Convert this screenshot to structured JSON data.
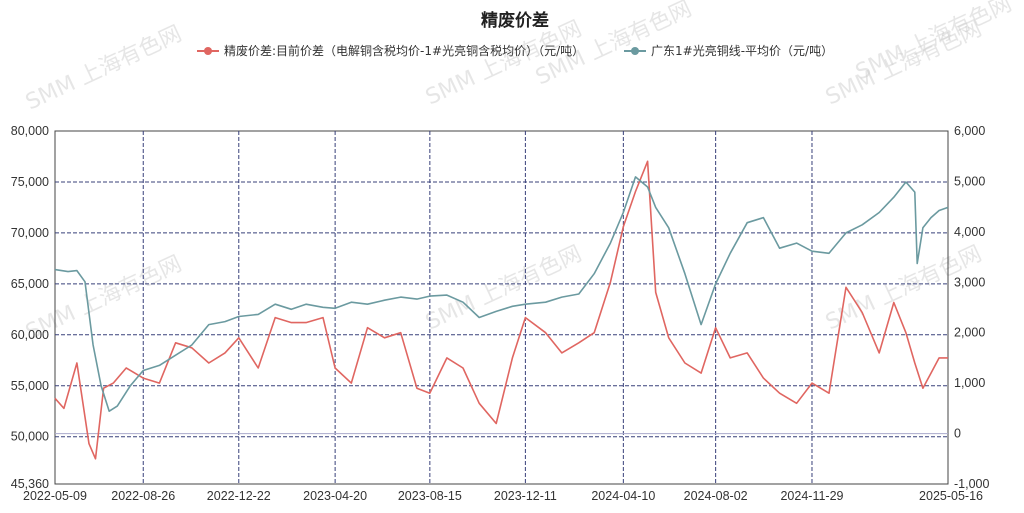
{
  "chart_data": {
    "type": "line",
    "title": "精废价差",
    "watermark": "SMM 上海有色网",
    "x_ticks": [
      "2022-05-09",
      "2022-08-26",
      "2022-12-22",
      "2023-04-20",
      "2023-08-15",
      "2023-12-11",
      "2024-04-10",
      "2024-08-02",
      "2024-11-29",
      "2025-05-16"
    ],
    "xlim": [
      "2022-05-09",
      "2025-05-16"
    ],
    "left_axis": {
      "ylim": [
        45360,
        80000
      ],
      "ticks": [
        "45,360",
        "50,000",
        "55,000",
        "60,000",
        "65,000",
        "70,000",
        "75,000",
        "80,000"
      ],
      "tick_values": [
        45360,
        50000,
        55000,
        60000,
        65000,
        70000,
        75000,
        80000
      ]
    },
    "right_axis": {
      "ylim": [
        -1000,
        6000
      ],
      "ticks": [
        "-1,000",
        "0",
        "1,000",
        "2,000",
        "3,000",
        "4,000",
        "5,000",
        "6,000"
      ],
      "tick_values": [
        -1000,
        0,
        1000,
        2000,
        3000,
        4000,
        5000,
        6000
      ]
    },
    "grid": true,
    "legend_position": "top",
    "series": [
      {
        "name": "精废价差:目前价差（电解铜含税均价-1#光亮铜含税均价）（元/吨）",
        "axis": "right",
        "color": "#e06661",
        "x": [
          "2022-05-09",
          "2022-05-20",
          "2022-06-05",
          "2022-06-20",
          "2022-06-28",
          "2022-07-08",
          "2022-07-20",
          "2022-08-05",
          "2022-08-26",
          "2022-09-15",
          "2022-10-05",
          "2022-10-25",
          "2022-11-15",
          "2022-12-05",
          "2022-12-22",
          "2023-01-15",
          "2023-02-05",
          "2023-02-25",
          "2023-03-15",
          "2023-04-05",
          "2023-04-20",
          "2023-05-10",
          "2023-05-30",
          "2023-06-20",
          "2023-07-10",
          "2023-07-30",
          "2023-08-15",
          "2023-09-05",
          "2023-09-25",
          "2023-10-15",
          "2023-11-05",
          "2023-11-25",
          "2023-12-11",
          "2024-01-05",
          "2024-01-25",
          "2024-02-15",
          "2024-03-05",
          "2024-03-25",
          "2024-04-10",
          "2024-04-25",
          "2024-05-10",
          "2024-05-20",
          "2024-06-05",
          "2024-06-25",
          "2024-07-15",
          "2024-08-02",
          "2024-08-20",
          "2024-09-10",
          "2024-09-30",
          "2024-10-20",
          "2024-11-10",
          "2024-11-29",
          "2024-12-20",
          "2025-01-10",
          "2025-01-30",
          "2025-02-20",
          "2025-03-10",
          "2025-03-25",
          "2025-04-05",
          "2025-04-15",
          "2025-04-25",
          "2025-05-05",
          "2025-05-16"
        ],
        "values": [
          700,
          500,
          1400,
          -200,
          -500,
          900,
          1000,
          1300,
          1100,
          1000,
          1800,
          1700,
          1400,
          1600,
          1900,
          1300,
          2300,
          2200,
          2200,
          2300,
          1300,
          1000,
          2100,
          1900,
          2000,
          900,
          800,
          1500,
          1300,
          600,
          200,
          1500,
          2300,
          2000,
          1600,
          1800,
          2000,
          3000,
          4100,
          4800,
          5400,
          2800,
          1900,
          1400,
          1200,
          2100,
          1500,
          1600,
          1100,
          800,
          600,
          1000,
          800,
          2900,
          2400,
          1600,
          2600,
          2000,
          1400,
          900,
          1200,
          1500,
          1500
        ]
      },
      {
        "name": "广东1#光亮铜线-平均价（元/吨）",
        "axis": "left",
        "color": "#6b9aa0",
        "x": [
          "2022-05-09",
          "2022-05-25",
          "2022-06-05",
          "2022-06-15",
          "2022-06-25",
          "2022-07-05",
          "2022-07-15",
          "2022-07-25",
          "2022-08-10",
          "2022-08-26",
          "2022-09-15",
          "2022-10-05",
          "2022-10-25",
          "2022-11-15",
          "2022-12-05",
          "2022-12-22",
          "2023-01-15",
          "2023-02-05",
          "2023-02-25",
          "2023-03-15",
          "2023-04-05",
          "2023-04-20",
          "2023-05-10",
          "2023-05-30",
          "2023-06-20",
          "2023-07-10",
          "2023-07-30",
          "2023-08-15",
          "2023-09-05",
          "2023-09-25",
          "2023-10-15",
          "2023-11-05",
          "2023-11-25",
          "2023-12-11",
          "2024-01-05",
          "2024-01-25",
          "2024-02-15",
          "2024-03-05",
          "2024-03-25",
          "2024-04-10",
          "2024-04-25",
          "2024-05-10",
          "2024-05-20",
          "2024-06-05",
          "2024-06-25",
          "2024-07-15",
          "2024-08-02",
          "2024-08-20",
          "2024-09-10",
          "2024-09-30",
          "2024-10-20",
          "2024-11-10",
          "2024-11-29",
          "2024-12-20",
          "2025-01-10",
          "2025-01-30",
          "2025-02-20",
          "2025-03-10",
          "2025-03-25",
          "2025-04-05",
          "2025-04-08",
          "2025-04-15",
          "2025-04-25",
          "2025-05-05",
          "2025-05-16"
        ],
        "values": [
          66400,
          66200,
          66300,
          65200,
          59000,
          55000,
          52500,
          53000,
          55000,
          56500,
          57000,
          58000,
          59000,
          61000,
          61300,
          61800,
          62000,
          63000,
          62500,
          63000,
          62700,
          62600,
          63200,
          63000,
          63400,
          63700,
          63500,
          63800,
          63900,
          63200,
          61700,
          62300,
          62800,
          63000,
          63200,
          63700,
          64000,
          66000,
          69000,
          72000,
          75500,
          74500,
          72500,
          70500,
          66000,
          61000,
          65000,
          68000,
          71000,
          71500,
          68500,
          69000,
          68200,
          68000,
          70000,
          70800,
          72000,
          73500,
          75000,
          74000,
          67000,
          70500,
          71500,
          72200,
          72500
        ]
      }
    ]
  }
}
